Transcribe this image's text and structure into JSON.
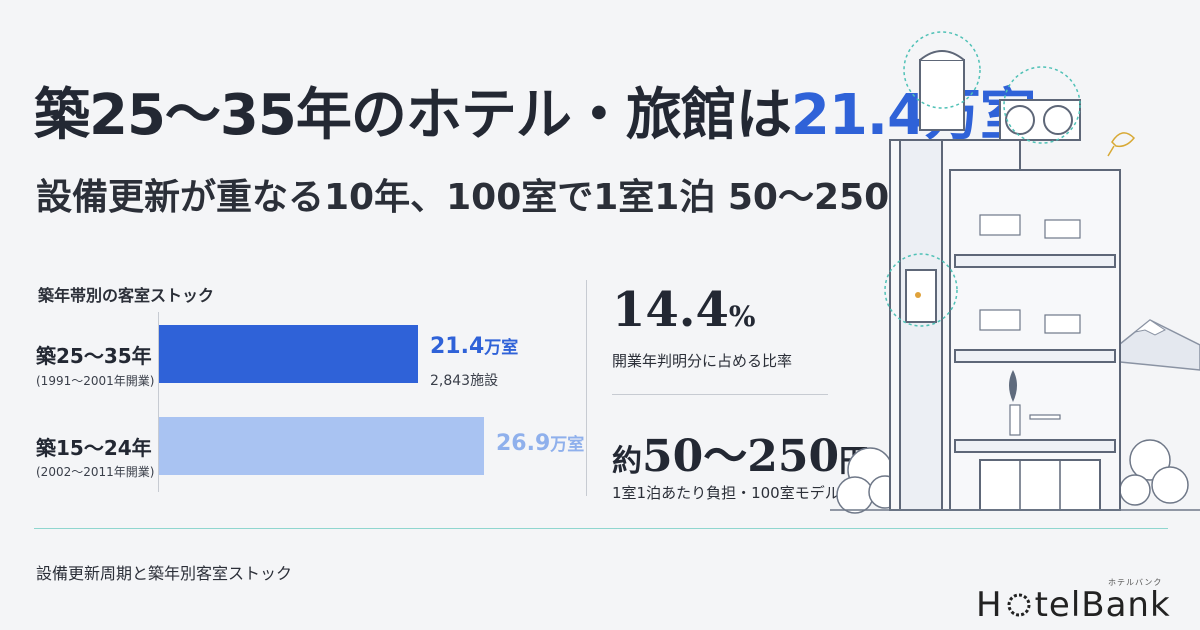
{
  "headline": {
    "prefix": "築25〜35年のホテル・旅館は",
    "accent": "21.4万室"
  },
  "subhead": "設備更新が重なる10年、100室で1室1泊 50〜250円",
  "stock": {
    "title": "築年帯別の客室ストック",
    "rows": [
      {
        "label": "築25〜35年",
        "sub": "(1991〜2001年開業)",
        "value_num": "21.4",
        "value_unit": "万室",
        "note": "2,843施設",
        "value": 21.4,
        "color": "#2f62d8",
        "value_color": "#2f62d8"
      },
      {
        "label": "築15〜24年",
        "sub": "(2002〜2011年開業)",
        "value_num": "26.9",
        "value_unit": "万室",
        "note": "",
        "value": 26.9,
        "color": "#a9c3f2",
        "value_color": "#8fb0ec"
      }
    ]
  },
  "stats": [
    {
      "num": "14.4",
      "unit": "%",
      "prefix": "",
      "label": "開業年判明分に占める比率"
    },
    {
      "num": "50〜250",
      "unit": "円",
      "prefix": "約",
      "label": "1室1泊あたり負担・100室モデル"
    }
  ],
  "footer_caption": "設備更新周期と築年別客室ストック",
  "logo": {
    "text_a": "H",
    "text_b": "telBank",
    "kana": "ホテルバンク"
  },
  "colors": {
    "accent": "#2f62d8",
    "teal": "#8fd6cf",
    "bar_dark": "#2f62d8",
    "bar_light": "#a9c3f2"
  }
}
